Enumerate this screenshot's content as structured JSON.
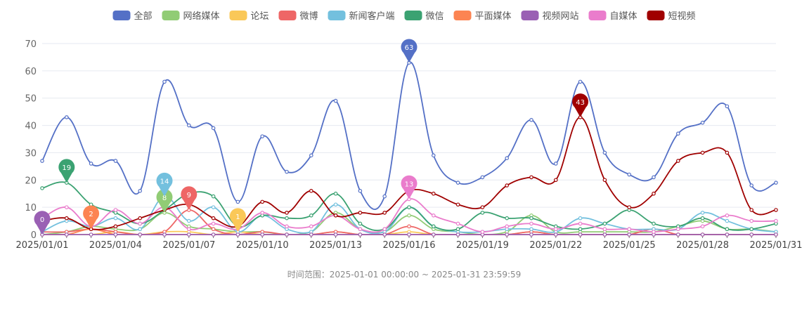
{
  "chart_data": {
    "type": "line",
    "smooth": true,
    "ylim": [
      0,
      70
    ],
    "yticks": [
      0,
      10,
      20,
      30,
      40,
      50,
      60,
      70
    ],
    "x": [
      "2025/01/01",
      "2025/01/02",
      "2025/01/03",
      "2025/01/04",
      "2025/01/05",
      "2025/01/06",
      "2025/01/07",
      "2025/01/08",
      "2025/01/09",
      "2025/01/10",
      "2025/01/11",
      "2025/01/12",
      "2025/01/13",
      "2025/01/14",
      "2025/01/15",
      "2025/01/16",
      "2025/01/17",
      "2025/01/18",
      "2025/01/19",
      "2025/01/20",
      "2025/01/21",
      "2025/01/22",
      "2025/01/23",
      "2025/01/24",
      "2025/01/25",
      "2025/01/26",
      "2025/01/27",
      "2025/01/28",
      "2025/01/29",
      "2025/01/30",
      "2025/01/31"
    ],
    "xtick_labels": [
      "2025/01/01",
      "2025/01/04",
      "2025/01/07",
      "2025/01/10",
      "2025/01/13",
      "2025/01/16",
      "2025/01/19",
      "2025/01/22",
      "2025/01/25",
      "2025/01/28",
      "2025/01/31"
    ],
    "footnote": "时间范围：2025-01-01 00:00:00 ~ 2025-01-31 23:59:59",
    "series": [
      {
        "name": "全部",
        "color": "#5470c6",
        "values": [
          27,
          43,
          26,
          27,
          16,
          56,
          40,
          39,
          12,
          36,
          23,
          29,
          49,
          16,
          14,
          63,
          29,
          19,
          21,
          28,
          42,
          26,
          56,
          30,
          22,
          21,
          37,
          41,
          47,
          18,
          19
        ],
        "markpoint": {
          "index": 15,
          "value": 63
        }
      },
      {
        "name": "网络媒体",
        "color": "#91cc75",
        "values": [
          0,
          1,
          3,
          2,
          2,
          8,
          3,
          2,
          1,
          1,
          0,
          1,
          8,
          2,
          1,
          7,
          2,
          1,
          0,
          1,
          7,
          1,
          1,
          1,
          1,
          1,
          3,
          5,
          2,
          2,
          1
        ],
        "markpoint": {
          "index": 5,
          "value": 8
        }
      },
      {
        "name": "论坛",
        "color": "#fac858",
        "values": [
          0,
          0,
          0,
          1,
          0,
          1,
          1,
          0,
          1,
          0,
          0,
          0,
          1,
          0,
          0,
          1,
          0,
          0,
          0,
          0,
          1,
          0,
          0,
          0,
          0,
          0,
          0,
          0,
          0,
          0,
          0
        ],
        "markpoint": {
          "index": 8,
          "value": 1
        }
      },
      {
        "name": "微博",
        "color": "#ee6666",
        "values": [
          1,
          1,
          2,
          1,
          0,
          1,
          9,
          2,
          0,
          1,
          0,
          0,
          1,
          0,
          0,
          3,
          0,
          0,
          0,
          0,
          1,
          0,
          0,
          0,
          0,
          2,
          0,
          0,
          0,
          0,
          0
        ],
        "markpoint": {
          "index": 6,
          "value": 9
        }
      },
      {
        "name": "新闻客户端",
        "color": "#73c0de",
        "values": [
          1,
          5,
          3,
          6,
          2,
          14,
          5,
          10,
          1,
          7,
          2,
          1,
          11,
          2,
          1,
          10,
          3,
          1,
          1,
          2,
          2,
          1,
          6,
          4,
          2,
          2,
          2,
          8,
          5,
          2,
          1
        ],
        "markpoint": {
          "index": 5,
          "value": 14
        }
      },
      {
        "name": "微信",
        "color": "#3ba272",
        "values": [
          17,
          19,
          11,
          8,
          4,
          9,
          15,
          14,
          3,
          7,
          6,
          7,
          15,
          4,
          2,
          10,
          3,
          2,
          8,
          6,
          6,
          3,
          2,
          4,
          9,
          4,
          3,
          6,
          2,
          2,
          4
        ],
        "markpoint": {
          "index": 1,
          "value": 19
        }
      },
      {
        "name": "平面媒体",
        "color": "#fc8452",
        "values": [
          0,
          0,
          2,
          0,
          0,
          0,
          0,
          0,
          0,
          0,
          0,
          0,
          0,
          0,
          0,
          0,
          0,
          0,
          0,
          0,
          0,
          0,
          0,
          0,
          0,
          0,
          0,
          0,
          0,
          0,
          0
        ],
        "markpoint": {
          "index": 2,
          "value": 2
        }
      },
      {
        "name": "视频网站",
        "color": "#9a60b4",
        "values": [
          0,
          0,
          0,
          0,
          0,
          0,
          0,
          0,
          0,
          0,
          0,
          0,
          0,
          0,
          0,
          0,
          0,
          0,
          0,
          0,
          0,
          0,
          0,
          0,
          0,
          0,
          0,
          0,
          0,
          0,
          0
        ],
        "markpoint": {
          "index": 0,
          "value": 0
        }
      },
      {
        "name": "自媒体",
        "color": "#ea7ccc",
        "values": [
          6,
          10,
          3,
          9,
          4,
          10,
          2,
          4,
          2,
          8,
          3,
          3,
          7,
          2,
          2,
          13,
          7,
          4,
          1,
          3,
          4,
          2,
          4,
          2,
          2,
          1,
          2,
          3,
          7,
          5,
          5
        ],
        "markpoint": {
          "index": 15,
          "value": 13
        }
      },
      {
        "name": "短视频",
        "color": "#a00000",
        "values": [
          5,
          6,
          2,
          3,
          6,
          9,
          11,
          6,
          3,
          12,
          8,
          16,
          7,
          8,
          8,
          16,
          15,
          11,
          10,
          18,
          21,
          20,
          43,
          20,
          10,
          15,
          27,
          30,
          30,
          9,
          9
        ],
        "markpoint": {
          "index": 22,
          "value": 43
        }
      }
    ]
  }
}
